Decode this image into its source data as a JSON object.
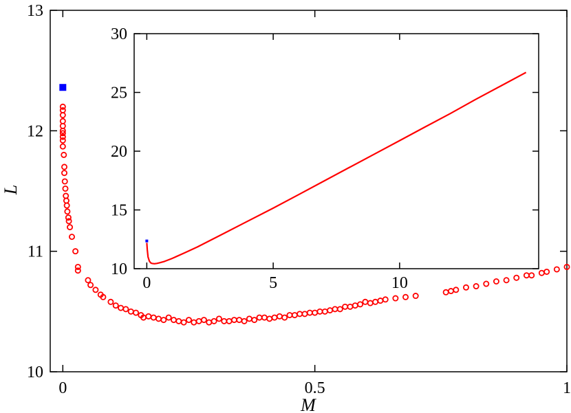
{
  "chart_data": [
    {
      "type": "scatter",
      "xlabel": "M",
      "ylabel": "L",
      "xlim": [
        -0.025,
        1.0
      ],
      "ylim": [
        10,
        13
      ],
      "xticks": [
        0,
        0.5,
        1
      ],
      "xtick_labels": [
        "0",
        "0.5",
        "1"
      ],
      "yticks": [
        10,
        11,
        12,
        13
      ],
      "ytick_labels": [
        "10",
        "11",
        "12",
        "13"
      ],
      "grid": false,
      "series": [
        {
          "marker": "open-circle",
          "color": "#ff0000",
          "points": [
            [
              0.0,
              12.2
            ],
            [
              0.0,
              12.17
            ],
            [
              0.0,
              12.13
            ],
            [
              0.0,
              12.08
            ],
            [
              0.0,
              12.04
            ],
            [
              0.0,
              12.0
            ],
            [
              0.0,
              11.98
            ],
            [
              0.0,
              11.95
            ],
            [
              0.0,
              11.92
            ],
            [
              0.0,
              11.87
            ],
            [
              0.002,
              11.8
            ],
            [
              0.003,
              11.7
            ],
            [
              0.003,
              11.65
            ],
            [
              0.004,
              11.58
            ],
            [
              0.005,
              11.52
            ],
            [
              0.006,
              11.46
            ],
            [
              0.007,
              11.42
            ],
            [
              0.008,
              11.38
            ],
            [
              0.009,
              11.33
            ],
            [
              0.011,
              11.28
            ],
            [
              0.012,
              11.25
            ],
            [
              0.014,
              11.2
            ],
            [
              0.018,
              11.12
            ],
            [
              0.025,
              11.0
            ],
            [
              0.03,
              10.87
            ],
            [
              0.03,
              10.84
            ],
            [
              0.05,
              10.76
            ],
            [
              0.055,
              10.72
            ],
            [
              0.065,
              10.68
            ],
            [
              0.075,
              10.64
            ],
            [
              0.08,
              10.62
            ],
            [
              0.095,
              10.58
            ],
            [
              0.105,
              10.55
            ],
            [
              0.115,
              10.53
            ],
            [
              0.125,
              10.52
            ],
            [
              0.135,
              10.5
            ],
            [
              0.145,
              10.49
            ],
            [
              0.155,
              10.47
            ],
            [
              0.16,
              10.45
            ],
            [
              0.17,
              10.46
            ],
            [
              0.18,
              10.45
            ],
            [
              0.19,
              10.44
            ],
            [
              0.2,
              10.43
            ],
            [
              0.21,
              10.45
            ],
            [
              0.22,
              10.43
            ],
            [
              0.23,
              10.42
            ],
            [
              0.24,
              10.41
            ],
            [
              0.25,
              10.43
            ],
            [
              0.26,
              10.41
            ],
            [
              0.27,
              10.42
            ],
            [
              0.28,
              10.43
            ],
            [
              0.29,
              10.41
            ],
            [
              0.3,
              10.42
            ],
            [
              0.31,
              10.44
            ],
            [
              0.32,
              10.42
            ],
            [
              0.33,
              10.42
            ],
            [
              0.34,
              10.43
            ],
            [
              0.35,
              10.43
            ],
            [
              0.36,
              10.42
            ],
            [
              0.37,
              10.44
            ],
            [
              0.38,
              10.43
            ],
            [
              0.39,
              10.45
            ],
            [
              0.4,
              10.45
            ],
            [
              0.41,
              10.44
            ],
            [
              0.42,
              10.45
            ],
            [
              0.43,
              10.46
            ],
            [
              0.44,
              10.45
            ],
            [
              0.45,
              10.47
            ],
            [
              0.46,
              10.47
            ],
            [
              0.47,
              10.48
            ],
            [
              0.48,
              10.48
            ],
            [
              0.49,
              10.49
            ],
            [
              0.5,
              10.49
            ],
            [
              0.51,
              10.5
            ],
            [
              0.52,
              10.5
            ],
            [
              0.53,
              10.51
            ],
            [
              0.54,
              10.52
            ],
            [
              0.55,
              10.52
            ],
            [
              0.56,
              10.54
            ],
            [
              0.57,
              10.54
            ],
            [
              0.58,
              10.55
            ],
            [
              0.59,
              10.56
            ],
            [
              0.6,
              10.58
            ],
            [
              0.61,
              10.57
            ],
            [
              0.62,
              10.58
            ],
            [
              0.63,
              10.59
            ],
            [
              0.64,
              10.6
            ],
            [
              0.66,
              10.61
            ],
            [
              0.68,
              10.62
            ],
            [
              0.7,
              10.63
            ],
            [
              0.76,
              10.66
            ],
            [
              0.77,
              10.67
            ],
            [
              0.78,
              10.68
            ],
            [
              0.8,
              10.7
            ],
            [
              0.82,
              10.71
            ],
            [
              0.84,
              10.73
            ],
            [
              0.86,
              10.75
            ],
            [
              0.88,
              10.76
            ],
            [
              0.9,
              10.78
            ],
            [
              0.92,
              10.8
            ],
            [
              0.93,
              10.8
            ],
            [
              0.95,
              10.82
            ],
            [
              0.96,
              10.83
            ],
            [
              0.98,
              10.85
            ],
            [
              1.0,
              10.87
            ]
          ]
        },
        {
          "marker": "filled-square",
          "color": "#0000ff",
          "points": [
            [
              0.0,
              12.36
            ]
          ]
        }
      ]
    },
    {
      "type": "line",
      "inset": true,
      "xlim": [
        -0.5,
        15.5
      ],
      "ylim": [
        10,
        30
      ],
      "xticks": [
        0,
        5,
        10
      ],
      "xtick_labels": [
        "0",
        "5",
        "10"
      ],
      "yticks": [
        10,
        15,
        20,
        25,
        30
      ],
      "ytick_labels": [
        "10",
        "15",
        "20",
        "25",
        "30"
      ],
      "grid": false,
      "series": [
        {
          "color": "#ff0000",
          "x": [
            0.0,
            0.02,
            0.05,
            0.1,
            0.15,
            0.2,
            0.3,
            0.4,
            0.5,
            0.7,
            1.0,
            1.5,
            2.0,
            3.0,
            4.0,
            5.0,
            6.0,
            7.0,
            8.0,
            9.0,
            10.0,
            11.0,
            12.0,
            13.0,
            14.0,
            15.0
          ],
          "y": [
            12.2,
            11.6,
            11.0,
            10.65,
            10.5,
            10.45,
            10.42,
            10.45,
            10.5,
            10.62,
            10.87,
            11.35,
            11.85,
            12.95,
            14.05,
            15.15,
            16.3,
            17.45,
            18.6,
            19.75,
            20.9,
            22.05,
            23.2,
            24.4,
            25.55,
            26.7
          ]
        },
        {
          "color": "#0000ff",
          "marker": "filled-square",
          "x": [
            0.0
          ],
          "y": [
            12.36
          ]
        }
      ]
    }
  ]
}
